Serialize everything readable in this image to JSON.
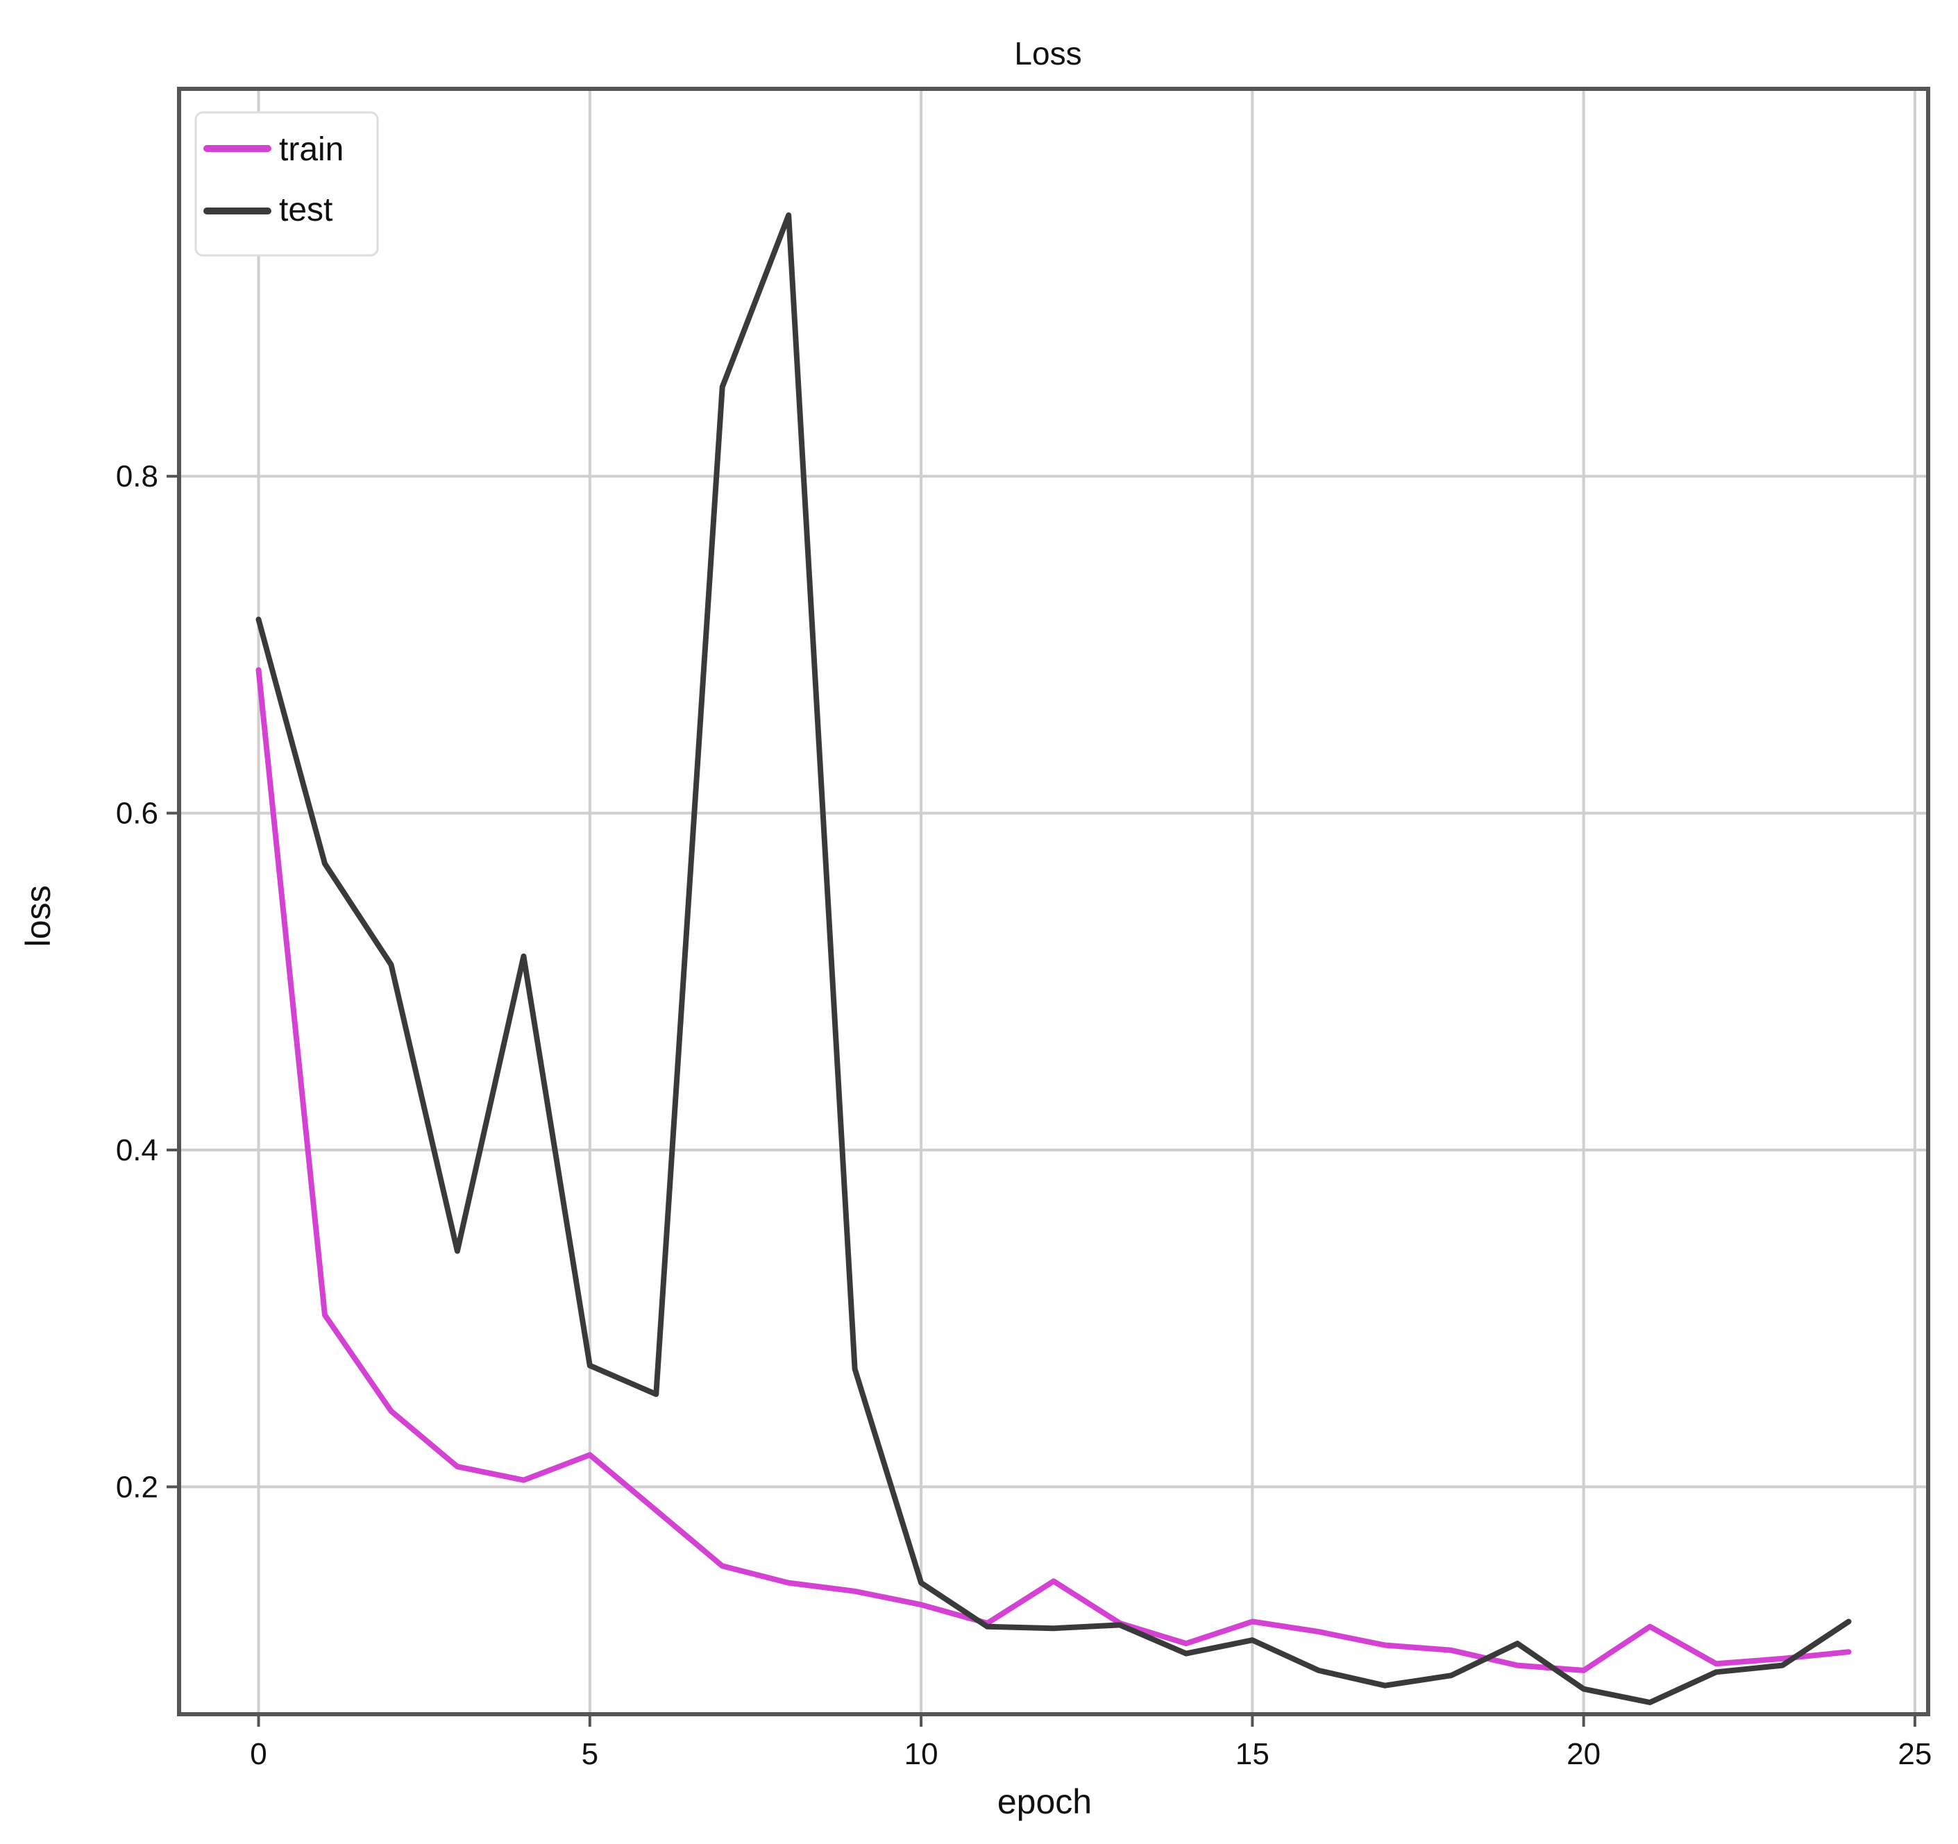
{
  "chart_data": {
    "type": "line",
    "title": "Loss",
    "xlabel": "epoch",
    "ylabel": "loss",
    "xlim": [
      -1.2,
      25.2
    ],
    "ylim": [
      0.065,
      1.03
    ],
    "xticks": [
      0,
      5,
      10,
      15,
      20,
      25
    ],
    "yticks": [
      0.2,
      0.4,
      0.6,
      0.8
    ],
    "xtick_labels": [
      "0",
      "5",
      "10",
      "15",
      "20",
      "25"
    ],
    "ytick_labels": [
      "0.2",
      "0.4",
      "0.6",
      "0.8"
    ],
    "grid": true,
    "legend_position": "top-left",
    "series": [
      {
        "name": "train",
        "color": "#d442d4",
        "x": [
          0,
          1,
          2,
          3,
          4,
          5,
          6,
          7,
          8,
          9,
          10,
          11,
          12,
          13,
          14,
          15,
          16,
          17,
          18,
          19,
          20,
          21,
          22,
          23,
          24
        ],
        "y": [
          0.685,
          0.302,
          0.245,
          0.212,
          0.204,
          0.219,
          0.186,
          0.153,
          0.143,
          0.138,
          0.13,
          0.119,
          0.144,
          0.119,
          0.107,
          0.12,
          0.114,
          0.106,
          0.103,
          0.094,
          0.091,
          0.117,
          0.095,
          0.098,
          0.102
        ]
      },
      {
        "name": "test",
        "color": "#3a3a3a",
        "x": [
          0,
          1,
          2,
          3,
          4,
          5,
          6,
          7,
          8,
          9,
          10,
          11,
          12,
          13,
          14,
          15,
          16,
          17,
          18,
          19,
          20,
          21,
          22,
          23,
          24
        ],
        "y": [
          0.715,
          0.57,
          0.51,
          0.34,
          0.515,
          0.272,
          0.255,
          0.853,
          0.955,
          0.27,
          0.143,
          0.117,
          0.116,
          0.118,
          0.101,
          0.109,
          0.091,
          0.082,
          0.088,
          0.107,
          0.08,
          0.072,
          0.09,
          0.094,
          0.12
        ]
      }
    ]
  }
}
